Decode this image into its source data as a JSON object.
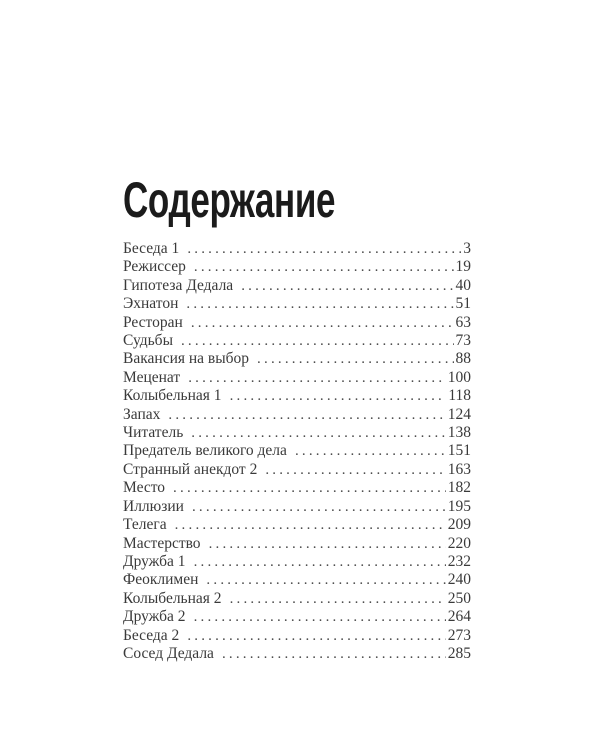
{
  "page": {
    "title": "Содержание",
    "entries": [
      {
        "label": "Беседа 1",
        "page": "3"
      },
      {
        "label": "Режиссер",
        "page": "19"
      },
      {
        "label": "Гипотеза Дедала",
        "page": "40"
      },
      {
        "label": "Эхнатон",
        "page": "51"
      },
      {
        "label": "Ресторан",
        "page": "63"
      },
      {
        "label": "Судьбы",
        "page": "73"
      },
      {
        "label": "Вакансия на выбор",
        "page": "88"
      },
      {
        "label": "Меценат",
        "page": "100"
      },
      {
        "label": "Колыбельная 1",
        "page": "118"
      },
      {
        "label": "Запах",
        "page": "124"
      },
      {
        "label": "Читатель",
        "page": "138"
      },
      {
        "label": "Предатель великого дела",
        "page": "151"
      },
      {
        "label": "Странный анекдот 2",
        "page": "163"
      },
      {
        "label": "Место",
        "page": "182"
      },
      {
        "label": "Иллюзии",
        "page": "195"
      },
      {
        "label": "Телега",
        "page": "209"
      },
      {
        "label": "Мастерство",
        "page": "220"
      },
      {
        "label": "Дружба 1",
        "page": "232"
      },
      {
        "label": "Феоклимен",
        "page": "240"
      },
      {
        "label": "Колыбельная 2",
        "page": "250"
      },
      {
        "label": "Дружба 2",
        "page": "264"
      },
      {
        "label": "Беседа 2",
        "page": "273"
      },
      {
        "label": "Сосед Дедала",
        "page": "285"
      }
    ]
  }
}
